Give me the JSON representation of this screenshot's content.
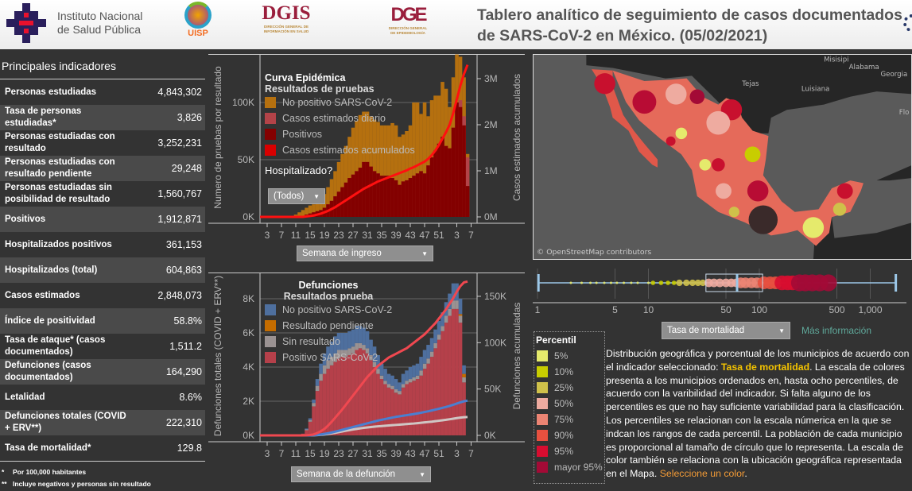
{
  "header": {
    "institute_line1": "Instituto Nacional",
    "institute_line2": "de Salud Pública",
    "uisp": "UISP",
    "dgis": "DGIS",
    "dgis_sub1": "DIRECCIÓN GENERAL DE",
    "dgis_sub2": "INFORMACIÓN EN SALUD",
    "dge": "DGE",
    "dge_sub1": "DIRECCIÓN GENERAL",
    "dge_sub2": "DE EPIDEMIOLOGÍA",
    "title_line1": "Tablero analítico de seguimiento de casos documentados",
    "title_line2": "de SARS-CoV-2 en México. (05/02/2021)"
  },
  "indicators": {
    "title": "Principales indicadores",
    "rows": [
      {
        "label": "Personas estudiadas",
        "value": "4,843,302"
      },
      {
        "label": "Tasa de personas estudiadas*",
        "value": "3,826"
      },
      {
        "label": "Personas estudiadas con resultado",
        "value": "3,252,231"
      },
      {
        "label": "Personas estudiadas con resultado pendiente",
        "value": "29,248"
      },
      {
        "label": "Personas estudiadas sin posibilidad de resultado",
        "value": "1,560,767"
      },
      {
        "label": "Positivos",
        "value": "1,912,871"
      },
      {
        "label": "Hospitalizados positivos",
        "value": "361,153"
      },
      {
        "label": "Hospitalizados (total)",
        "value": "604,863"
      },
      {
        "label": "Casos estimados",
        "value": "2,848,073"
      },
      {
        "label": "Índice de positividad",
        "value": "58.8%"
      },
      {
        "label": "Tasa de ataque* (casos documentados)",
        "value": "1,511.2"
      },
      {
        "label": "Defunciones (casos documentados)",
        "value": "164,290"
      },
      {
        "label": "Letalidad",
        "value": "8.6%"
      },
      {
        "label": "Defunciones totales (COVID + ERV**)",
        "value": "222,310"
      },
      {
        "label": "Tasa de mortalidad*",
        "value": "129.8"
      }
    ],
    "footnote1_mark": "*",
    "footnote1": "Por 100,000 habitantes",
    "footnote2_mark": "**",
    "footnote2": "Incluye negativos y personas sin resultado"
  },
  "chart_data": [
    {
      "type": "bar",
      "title": "Curva Epidémica",
      "subtitle": "Resultados de pruebas",
      "ylabel": "Numero de pruebas por resultado",
      "y2label": "Casos estimados acumulados",
      "xlabel_dropdown": "Semana de ingreso",
      "filter_label": "Hospitalizado?",
      "filter_value": "(Todos)",
      "yticks": [
        "0K",
        "50K",
        "100K"
      ],
      "ytick_values": [
        0,
        50,
        100
      ],
      "y2ticks": [
        "0M",
        "1M",
        "2M",
        "3M"
      ],
      "y2tick_values": [
        0,
        1,
        2,
        3
      ],
      "xticks": [
        "3",
        "7",
        "11",
        "15",
        "19",
        "23",
        "27",
        "31",
        "35",
        "39",
        "43",
        "47",
        "51",
        "3",
        "7"
      ],
      "xtick_index": [
        2,
        6,
        10,
        14,
        18,
        22,
        26,
        30,
        34,
        38,
        42,
        46,
        50,
        55,
        59
      ],
      "legend": [
        {
          "name": "No positivo SARS-CoV-2",
          "color": "#b5700f"
        },
        {
          "name": "Casos estimados diario",
          "color": "#b34348"
        },
        {
          "name": "Positivos",
          "color": "#830000"
        },
        {
          "name": "Casos estimados acumulados",
          "color": "#d80000"
        }
      ],
      "units": "thousands (bars), millions (line)",
      "total_tests": [
        0,
        0,
        0,
        0,
        0,
        0,
        0,
        0,
        0,
        1,
        2,
        4,
        6,
        8,
        10,
        11,
        13,
        16,
        20,
        26,
        33,
        40,
        48,
        55,
        62,
        70,
        78,
        84,
        89,
        92,
        92,
        88,
        85,
        83,
        80,
        80,
        80,
        82,
        80,
        70,
        72,
        75,
        80,
        100,
        100,
        90,
        100,
        88,
        102,
        106,
        106,
        118,
        112,
        96,
        122,
        142,
        140,
        122,
        55
      ],
      "estimated_daily": [
        0,
        0,
        0,
        0,
        0,
        0,
        0,
        0,
        0,
        0,
        0,
        1,
        1,
        2,
        3,
        4,
        5,
        6,
        8,
        11,
        14,
        18,
        22,
        26,
        30,
        34,
        37,
        40,
        43,
        48,
        48,
        44,
        40,
        38,
        36,
        36,
        36,
        34,
        32,
        28,
        31,
        32,
        34,
        36,
        38,
        40,
        38,
        45,
        52,
        58,
        64,
        70,
        62,
        60,
        78,
        100,
        102,
        88,
        52
      ],
      "positives": [
        0,
        0,
        0,
        0,
        0,
        0,
        0,
        0,
        0,
        0,
        0,
        1,
        1,
        2,
        3,
        4,
        5,
        6,
        8,
        11,
        14,
        18,
        22,
        26,
        30,
        34,
        37,
        40,
        43,
        48,
        48,
        44,
        40,
        38,
        36,
        36,
        36,
        34,
        32,
        28,
        31,
        32,
        34,
        36,
        38,
        40,
        38,
        45,
        52,
        58,
        64,
        70,
        62,
        60,
        78,
        100,
        96,
        80,
        27
      ],
      "cumulative_estimated": [
        0,
        0,
        0,
        0,
        0,
        0,
        0,
        0,
        0,
        0,
        0,
        0,
        0,
        0.01,
        0.02,
        0.03,
        0.05,
        0.07,
        0.1,
        0.13,
        0.17,
        0.21,
        0.26,
        0.31,
        0.36,
        0.41,
        0.46,
        0.51,
        0.56,
        0.61,
        0.65,
        0.69,
        0.73,
        0.77,
        0.8,
        0.83,
        0.86,
        0.89,
        0.92,
        0.95,
        0.98,
        1.01,
        1.05,
        1.08,
        1.12,
        1.16,
        1.2,
        1.26,
        1.34,
        1.44,
        1.56,
        1.7,
        1.84,
        2.0,
        2.25,
        2.55,
        2.85,
        3.1,
        3.3
      ]
    },
    {
      "type": "bar",
      "title": "Defunciones",
      "subtitle": "Resultados  prueba",
      "ylabel": "Defunciones totales (COVID + ERV**)",
      "y2label": "Defunciones acumuladas",
      "xlabel_dropdown": "Semana de la defunción",
      "yticks": [
        "0K",
        "2K",
        "4K",
        "6K",
        "8K"
      ],
      "ytick_values": [
        0,
        2,
        4,
        6,
        8
      ],
      "y2ticks": [
        "0K",
        "50K",
        "100K",
        "150K"
      ],
      "y2tick_values": [
        0,
        50,
        100,
        150
      ],
      "xticks": [
        "3",
        "7",
        "11",
        "15",
        "19",
        "23",
        "27",
        "31",
        "35",
        "39",
        "43",
        "47",
        "51",
        "3",
        "7"
      ],
      "xtick_index": [
        2,
        6,
        10,
        14,
        18,
        22,
        26,
        30,
        34,
        38,
        42,
        46,
        50,
        55,
        59
      ],
      "legend": [
        {
          "name": "No positivo SARS-CoV-2",
          "color": "#4e6f9e"
        },
        {
          "name": "Resultado pendiente",
          "color": "#c46c00"
        },
        {
          "name": "Sin resultado",
          "color": "#9a9292"
        },
        {
          "name": "Positivo SARS-CoV-2",
          "color": "#b5404a"
        }
      ],
      "units": "thousands",
      "positive": [
        0,
        0,
        0,
        0,
        0,
        0,
        0,
        0,
        0,
        0,
        0,
        0,
        0.1,
        0.3,
        0.8,
        1.7,
        2.6,
        3.2,
        3.6,
        3.9,
        4.1,
        4.3,
        4.5,
        4.6,
        4.6,
        4.7,
        4.8,
        5.0,
        5.1,
        5.0,
        4.8,
        4.4,
        4.0,
        3.6,
        3.3,
        3.0,
        2.8,
        2.7,
        2.5,
        2.4,
        2.8,
        3.0,
        3.1,
        3.2,
        3.3,
        3.5,
        3.9,
        4.2,
        4.6,
        5.1,
        5.6,
        6.1,
        6.6,
        7.0,
        7.4,
        7.4,
        6.6,
        3.1,
        0
      ],
      "sin_resultado": [
        0,
        0,
        0,
        0,
        0,
        0,
        0,
        0,
        0,
        0,
        0,
        0,
        0,
        0.05,
        0.1,
        0.2,
        0.3,
        0.4,
        0.5,
        0.5,
        0.5,
        0.5,
        0.5,
        0.4,
        0.4,
        0.4,
        0.4,
        0.4,
        0.3,
        0.3,
        0.3,
        0.3,
        0.3,
        0.3,
        0.2,
        0.2,
        0.2,
        0.2,
        0.2,
        0.2,
        0.2,
        0.2,
        0.2,
        0.2,
        0.2,
        0.3,
        0.3,
        0.3,
        0.3,
        0.3,
        0.3,
        0.3,
        0.4,
        0.4,
        0.5,
        0.5,
        0.4,
        0.3,
        0
      ],
      "pendiente": [
        0,
        0,
        0,
        0,
        0,
        0,
        0,
        0,
        0,
        0,
        0,
        0,
        0,
        0,
        0,
        0,
        0,
        0,
        0,
        0,
        0,
        0,
        0,
        0,
        0,
        0,
        0,
        0,
        0,
        0,
        0,
        0,
        0,
        0,
        0,
        0,
        0,
        0,
        0,
        0,
        0,
        0,
        0,
        0,
        0,
        0,
        0,
        0,
        0,
        0,
        0,
        0,
        0,
        0,
        0,
        0,
        0.1,
        0.2,
        0
      ],
      "no_positivo": [
        0,
        0,
        0,
        0,
        0,
        0,
        0,
        0,
        0,
        0,
        0,
        0,
        0,
        0.05,
        0.1,
        0.2,
        0.4,
        0.6,
        0.7,
        0.8,
        0.9,
        1.0,
        1.0,
        1.0,
        1.0,
        1.0,
        1.0,
        1.0,
        1.0,
        1.0,
        1.0,
        0.9,
        0.9,
        0.8,
        0.7,
        0.7,
        0.6,
        0.6,
        0.6,
        0.5,
        0.6,
        0.6,
        0.7,
        0.7,
        0.7,
        0.8,
        0.8,
        0.8,
        0.8,
        0.8,
        0.8,
        0.8,
        0.8,
        0.9,
        1.0,
        1.0,
        0.9,
        0.5,
        0
      ],
      "cum_positive": [
        0,
        0,
        0,
        0,
        0,
        0,
        0,
        0,
        0,
        0,
        0,
        0,
        0,
        0.1,
        0.4,
        1,
        2.5,
        4.5,
        7,
        10.5,
        14.5,
        19,
        23.5,
        28,
        33,
        38,
        43,
        48,
        53,
        58,
        63,
        67,
        71,
        75,
        78,
        81,
        84,
        86,
        88,
        90,
        92,
        94,
        97,
        100,
        103,
        106,
        109,
        113,
        117,
        121,
        126,
        131,
        136,
        142,
        148,
        155,
        161,
        165,
        166
      ],
      "cum_no_positivo": [
        0,
        0,
        0,
        0,
        0,
        0,
        0,
        0,
        0,
        0,
        0,
        0,
        0,
        0,
        0,
        0.2,
        0.5,
        1,
        1.6,
        2.3,
        3.1,
        4,
        5,
        6,
        7,
        8,
        9,
        10,
        11,
        12,
        13,
        14,
        15,
        16,
        16.8,
        17.6,
        18.4,
        19.2,
        20,
        20.6,
        21.2,
        21.8,
        22.4,
        23,
        23.7,
        24.4,
        25.2,
        26,
        26.9,
        27.8,
        28.7,
        29.7,
        30.7,
        31.8,
        33,
        34.3,
        35.6,
        36.8,
        37.5
      ],
      "cum_sin_resultado": [
        0,
        0,
        0,
        0,
        0,
        0,
        0,
        0,
        0,
        0,
        0,
        0,
        0,
        0,
        0,
        0.1,
        0.3,
        0.6,
        1,
        1.5,
        2.1,
        2.8,
        3.5,
        4.3,
        5,
        5.7,
        6.4,
        7,
        7.6,
        8.1,
        8.6,
        9,
        9.4,
        9.8,
        10.1,
        10.4,
        10.7,
        11,
        11.3,
        11.6,
        11.9,
        12.2,
        12.5,
        12.8,
        13.2,
        13.6,
        14,
        14.4,
        14.8,
        15.3,
        15.8,
        16.3,
        16.8,
        17.4,
        18,
        18.6,
        19.2,
        19.6,
        19.8
      ]
    },
    {
      "type": "scatter",
      "scale": "log",
      "xticks": [
        "1",
        "5",
        "10",
        "50",
        "100",
        "500",
        "1,000"
      ],
      "xtick_values": [
        1,
        5,
        10,
        50,
        100,
        500,
        1000
      ],
      "whisker_low": 1.02,
      "q1": 33,
      "median": 63,
      "q3": 107,
      "whisker_high": 1700,
      "dropdown": "Tasa de mortalidad",
      "link": "Más información",
      "points": [
        [
          2,
          0
        ],
        [
          2.5,
          0
        ],
        [
          3,
          0
        ],
        [
          3.4,
          0
        ],
        [
          4,
          0
        ],
        [
          4.6,
          0
        ],
        [
          5.2,
          0
        ],
        [
          6,
          0
        ],
        [
          7,
          0
        ],
        [
          8,
          0
        ],
        [
          10,
          0
        ],
        [
          11,
          1
        ],
        [
          13,
          1
        ],
        [
          15,
          1
        ],
        [
          17,
          1
        ],
        [
          19,
          2
        ],
        [
          22,
          2
        ],
        [
          25,
          2
        ],
        [
          28,
          2
        ],
        [
          31,
          2
        ],
        [
          35,
          3
        ],
        [
          39,
          3
        ],
        [
          44,
          3
        ],
        [
          50,
          3
        ],
        [
          56,
          3
        ],
        [
          62,
          3
        ],
        [
          68,
          4
        ],
        [
          75,
          4
        ],
        [
          85,
          4
        ],
        [
          95,
          4
        ],
        [
          110,
          5
        ],
        [
          125,
          5
        ],
        [
          140,
          5
        ],
        [
          160,
          6
        ],
        [
          180,
          6
        ],
        [
          200,
          6
        ],
        [
          230,
          7
        ],
        [
          260,
          7
        ],
        [
          300,
          7
        ],
        [
          350,
          7
        ],
        [
          420,
          7
        ]
      ]
    }
  ],
  "map": {
    "labels": [
      "Tejas",
      "Luisiana",
      "Misisipi",
      "Alabama",
      "Georgia",
      "Flo"
    ],
    "attribution": "© OpenStreetMap contributors"
  },
  "percentiles": {
    "title": "Percentil",
    "items": [
      {
        "label": "5%",
        "color": "#e5ea6c"
      },
      {
        "label": "10%",
        "color": "#c8cd00"
      },
      {
        "label": "25%",
        "color": "#cfc14a"
      },
      {
        "label": "50%",
        "color": "#eeaba0"
      },
      {
        "label": "75%",
        "color": "#ec8473"
      },
      {
        "label": "90%",
        "color": "#e8503f"
      },
      {
        "label": "95%",
        "color": "#d80d30"
      },
      {
        "label": "mayor 95%",
        "color": "#a30a36"
      }
    ]
  },
  "description": {
    "p1": "Distribución geográfica y porcentual de los municipios de acuerdo con el indicador seleccionado: ",
    "highlight": "Tasa de mortalidad",
    "p2": ". La escala de colores presenta a los municipios ordenados en, hasta ocho percentiles, de acuerdo con la varibilidad del indicador. Si falta alguno de los percentiles es que no hay suficiente variabilidad para la clasificación. Los percentiles se relacionan con la escala númerica en la que se indcan los rangos de cada percentil. La población de cada municipio es proporcional al tamaño de círculo que lo representa. La escala de color también se relaciona con la ubicación geográfica representada en el Mapa. ",
    "link": "Seleccione un color",
    "end": "."
  }
}
